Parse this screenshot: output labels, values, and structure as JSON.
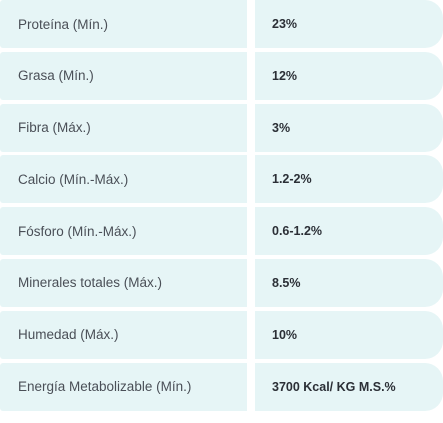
{
  "table": {
    "rows": [
      {
        "label": "Proteína (Mín.)",
        "value": "23%"
      },
      {
        "label": "Grasa (Mín.)",
        "value": "12%"
      },
      {
        "label": "Fibra (Máx.)",
        "value": "3%"
      },
      {
        "label": "Calcio (Mín.-Máx.)",
        "value": "1.2-2%"
      },
      {
        "label": "Fósforo (Mín.-Máx.)",
        "value": "0.6-1.2%"
      },
      {
        "label": "Minerales totales (Máx.)",
        "value": "8.5%"
      },
      {
        "label": "Humedad (Máx.)",
        "value": "10%"
      },
      {
        "label": "Energía Metabolizable (Mín.)",
        "value": "3700 Kcal/ KG M.S.%"
      }
    ]
  },
  "colors": {
    "cell_background": "#e6f5f6",
    "label_text": "#4a4f57",
    "value_text": "#2b2f36"
  }
}
